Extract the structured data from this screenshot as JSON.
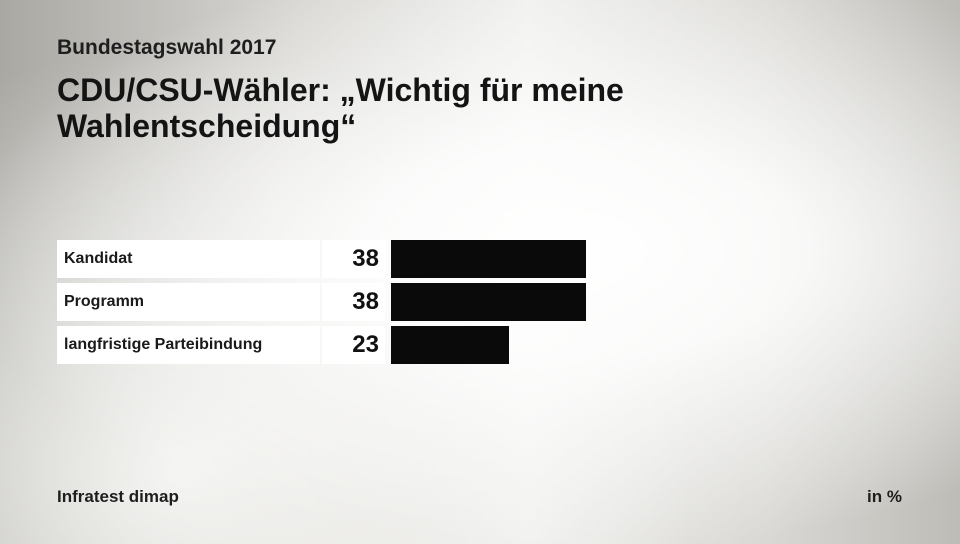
{
  "header": {
    "supertitle": "Bundestagswahl 2017",
    "title": "CDU/CSU-Wähler: „Wichtig für meine Wahlentscheidung“"
  },
  "footer": {
    "source": "Infratest dimap",
    "unit": "in %"
  },
  "colors": {
    "bar": "#0a0a0a",
    "label_background": "#ffffff"
  },
  "chart_data": {
    "type": "bar",
    "orientation": "horizontal",
    "categories": [
      "Kandidat",
      "Programm",
      "langfristige Parteibindung"
    ],
    "values": [
      38,
      38,
      23
    ],
    "value_labels": [
      "38",
      "38",
      "23"
    ],
    "unit": "in %",
    "xlim": [
      0,
      100
    ],
    "grid": false
  }
}
